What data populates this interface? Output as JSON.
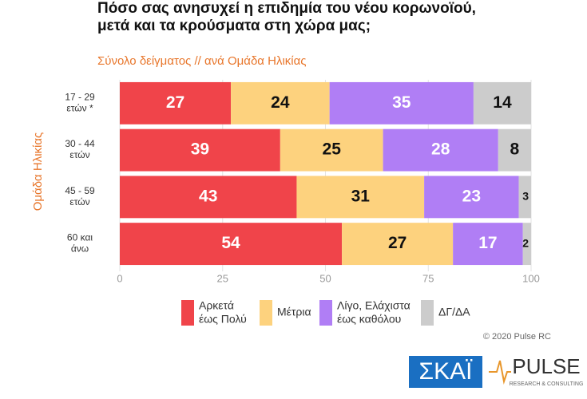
{
  "chart_data": {
    "type": "stacked-barh",
    "title": "Πόσο σας ανησυχεί η επιδημία του νέου κορωνοϊού,\nμετά και τα κρούσματα στη χώρα μας;",
    "subtitle": "Σύνολο δείγματος // ανά Ομάδα Ηλικίας",
    "y_label": "Ομάδα Ηλικίας",
    "categories": [
      "17 - 29\nετών *",
      "30 - 44\nετών",
      "45 - 59\nετών",
      "60 και\nάνω"
    ],
    "series": [
      {
        "name": "Αρκετά\nέως Πολύ",
        "color": "#f0444a",
        "values": [
          27,
          39,
          43,
          54
        ]
      },
      {
        "name": "Μέτρια",
        "color": "#fdd27e",
        "values": [
          24,
          25,
          31,
          27
        ]
      },
      {
        "name": "Λίγο, Ελάχιστα\nέως καθόλου",
        "color": "#b07ef5",
        "values": [
          35,
          28,
          23,
          17
        ]
      },
      {
        "name": "ΔΓ/ΔΑ",
        "color": "#cccccc",
        "values": [
          14,
          8,
          3,
          2
        ]
      }
    ],
    "xlim": [
      0,
      100
    ],
    "xticks": [
      0,
      25,
      50,
      75,
      100
    ],
    "grid": true,
    "copyright": "© 2020 Pulse RC"
  },
  "logos": {
    "left": "ΣΚΑΪ",
    "right": "PULSE",
    "right_sub": "RESEARCH & CONSULTING"
  }
}
